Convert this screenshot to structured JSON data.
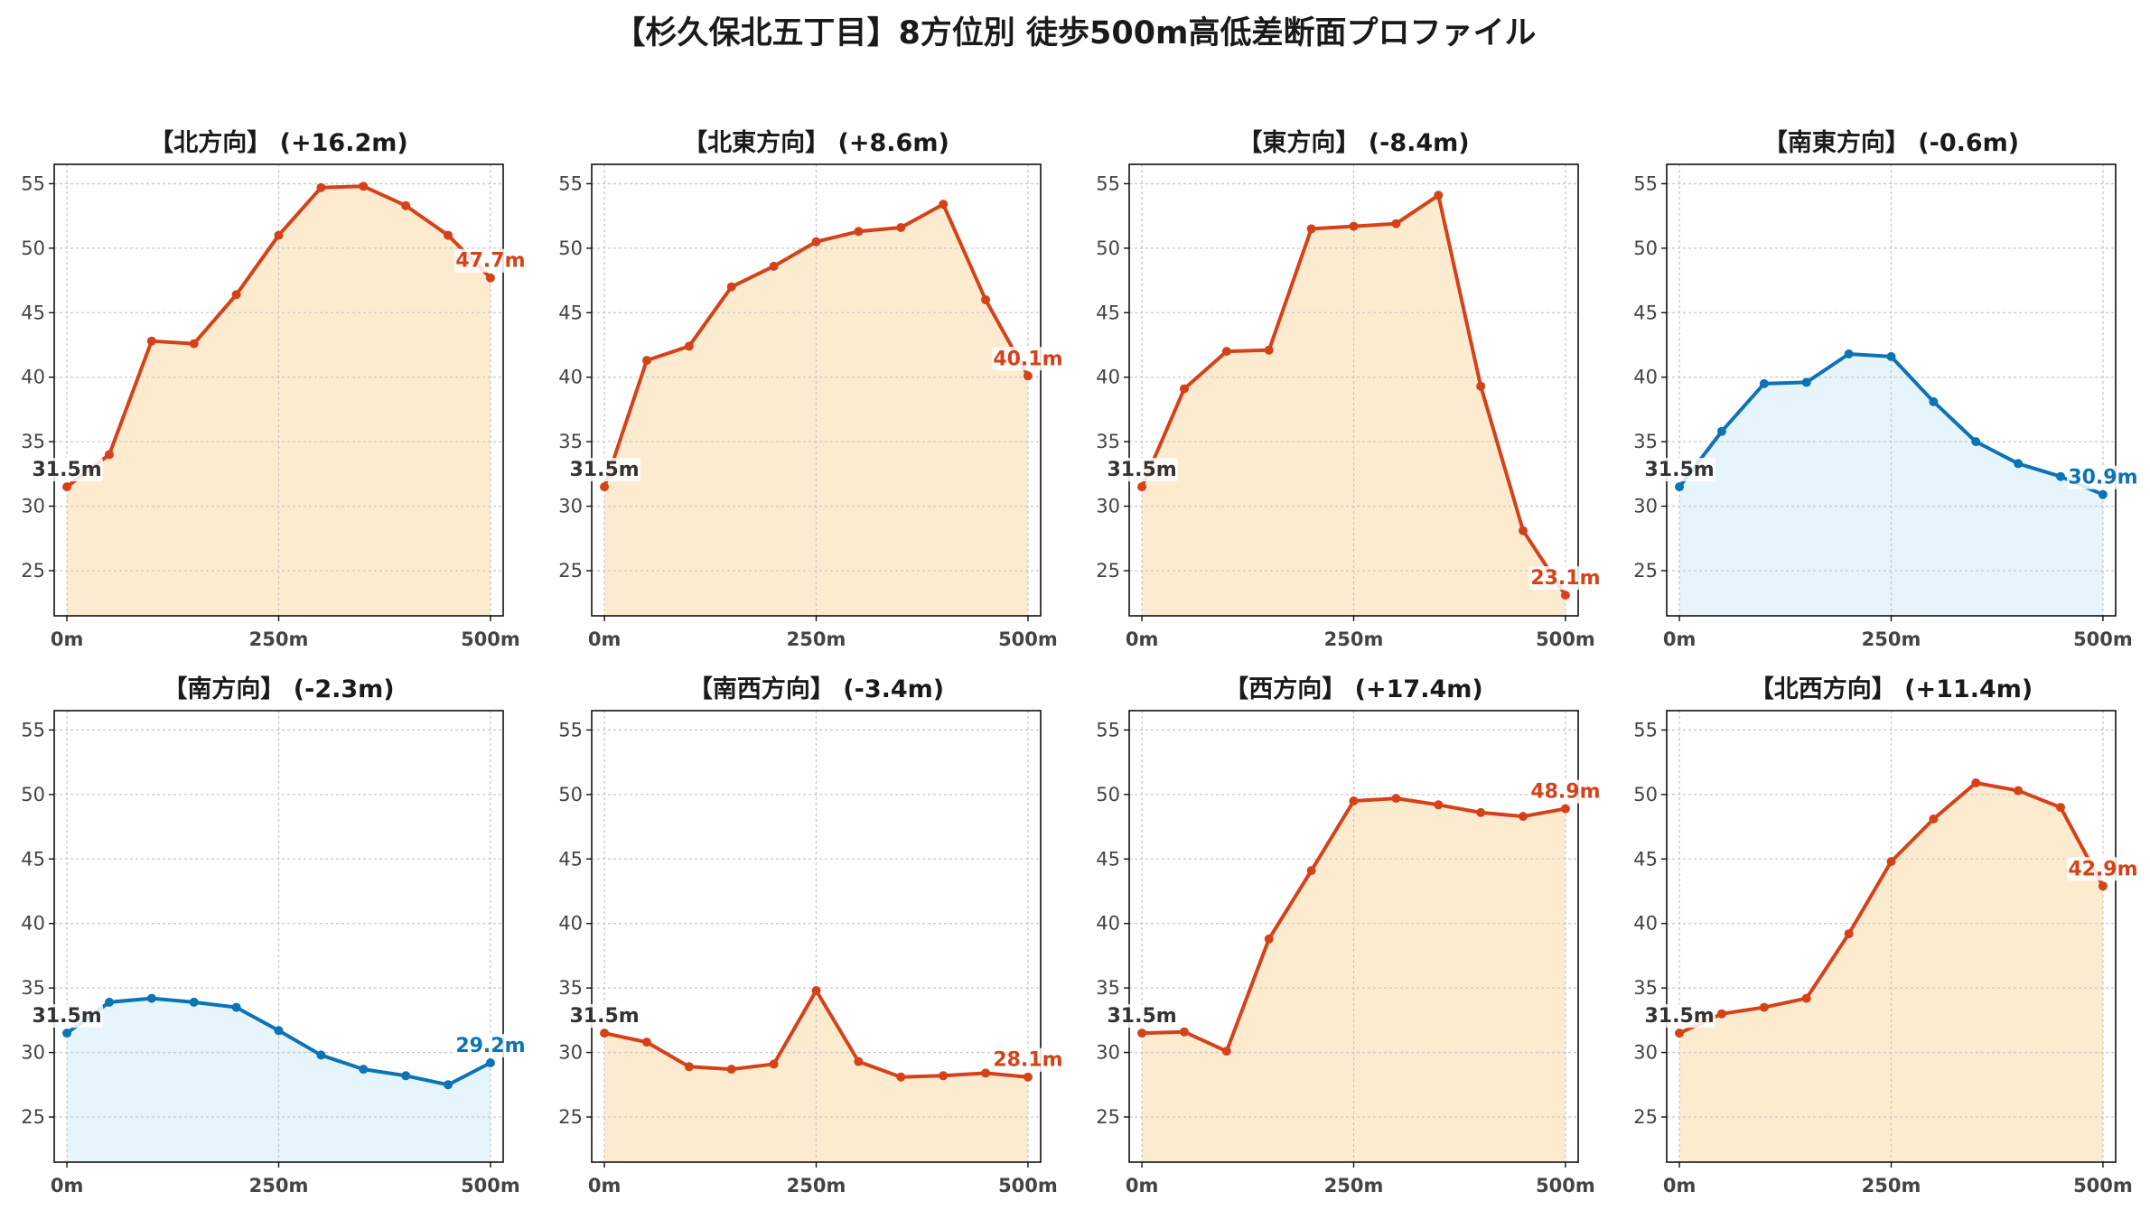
{
  "title": "【杉久保北五丁目】8方位別 徒歩500m高低差断面プロファイル",
  "colors": {
    "up_line": "#d4421a",
    "up_fill": "#fdebd0",
    "down_line": "#0d73b5",
    "down_fill": "#e6f4fb",
    "start_label": "#333333",
    "grid": "#c8c8c8",
    "frame": "#111111"
  },
  "chart_data": [
    {
      "type": "area",
      "title": "【北方向】 (+16.2m)",
      "trend": "up",
      "x": [
        0,
        50,
        100,
        150,
        200,
        250,
        300,
        350,
        400,
        450,
        500
      ],
      "values": [
        31.5,
        34.0,
        42.8,
        42.6,
        46.4,
        51.0,
        54.7,
        54.8,
        53.3,
        51.0,
        47.7
      ],
      "xticks": [
        0,
        250,
        500
      ],
      "xtick_labels": [
        "0m",
        "250m",
        "500m"
      ],
      "yticks": [
        25,
        30,
        35,
        40,
        45,
        50,
        55
      ],
      "xlim": [
        -15,
        515
      ],
      "ylim": [
        21.5,
        56.5
      ],
      "start_label": "31.5m",
      "end_label": "47.7m",
      "grid": true
    },
    {
      "type": "area",
      "title": "【北東方向】 (+8.6m)",
      "trend": "up",
      "x": [
        0,
        50,
        100,
        150,
        200,
        250,
        300,
        350,
        400,
        450,
        500
      ],
      "values": [
        31.5,
        41.3,
        42.4,
        47.0,
        48.6,
        50.5,
        51.3,
        51.6,
        53.4,
        46.0,
        40.1
      ],
      "xticks": [
        0,
        250,
        500
      ],
      "xtick_labels": [
        "0m",
        "250m",
        "500m"
      ],
      "yticks": [
        25,
        30,
        35,
        40,
        45,
        50,
        55
      ],
      "xlim": [
        -15,
        515
      ],
      "ylim": [
        21.5,
        56.5
      ],
      "start_label": "31.5m",
      "end_label": "40.1m",
      "grid": true
    },
    {
      "type": "area",
      "title": "【東方向】 (-8.4m)",
      "trend": "up",
      "x": [
        0,
        50,
        100,
        150,
        200,
        250,
        300,
        350,
        400,
        450,
        500
      ],
      "values": [
        31.5,
        39.1,
        42.0,
        42.1,
        51.5,
        51.7,
        51.9,
        54.1,
        39.3,
        28.1,
        23.1
      ],
      "xticks": [
        0,
        250,
        500
      ],
      "xtick_labels": [
        "0m",
        "250m",
        "500m"
      ],
      "yticks": [
        25,
        30,
        35,
        40,
        45,
        50,
        55
      ],
      "xlim": [
        -15,
        515
      ],
      "ylim": [
        21.5,
        56.5
      ],
      "start_label": "31.5m",
      "end_label": "23.1m",
      "grid": true
    },
    {
      "type": "area",
      "title": "【南東方向】 (-0.6m)",
      "trend": "down",
      "x": [
        0,
        50,
        100,
        150,
        200,
        250,
        300,
        350,
        400,
        450,
        500
      ],
      "values": [
        31.5,
        35.8,
        39.5,
        39.6,
        41.8,
        41.6,
        38.1,
        35.0,
        33.3,
        32.3,
        30.9
      ],
      "xticks": [
        0,
        250,
        500
      ],
      "xtick_labels": [
        "0m",
        "250m",
        "500m"
      ],
      "yticks": [
        25,
        30,
        35,
        40,
        45,
        50,
        55
      ],
      "xlim": [
        -15,
        515
      ],
      "ylim": [
        21.5,
        56.5
      ],
      "start_label": "31.5m",
      "end_label": "30.9m",
      "grid": true
    },
    {
      "type": "area",
      "title": "【南方向】 (-2.3m)",
      "trend": "down",
      "x": [
        0,
        50,
        100,
        150,
        200,
        250,
        300,
        350,
        400,
        450,
        500
      ],
      "values": [
        31.5,
        33.9,
        34.2,
        33.9,
        33.5,
        31.7,
        29.8,
        28.7,
        28.2,
        27.5,
        29.2
      ],
      "xticks": [
        0,
        250,
        500
      ],
      "xtick_labels": [
        "0m",
        "250m",
        "500m"
      ],
      "yticks": [
        25,
        30,
        35,
        40,
        45,
        50,
        55
      ],
      "xlim": [
        -15,
        515
      ],
      "ylim": [
        21.5,
        56.5
      ],
      "start_label": "31.5m",
      "end_label": "29.2m",
      "grid": true
    },
    {
      "type": "area",
      "title": "【南西方向】 (-3.4m)",
      "trend": "up",
      "x": [
        0,
        50,
        100,
        150,
        200,
        250,
        300,
        350,
        400,
        450,
        500
      ],
      "values": [
        31.5,
        30.8,
        28.9,
        28.7,
        29.1,
        34.8,
        29.3,
        28.1,
        28.2,
        28.4,
        28.1
      ],
      "xticks": [
        0,
        250,
        500
      ],
      "xtick_labels": [
        "0m",
        "250m",
        "500m"
      ],
      "yticks": [
        25,
        30,
        35,
        40,
        45,
        50,
        55
      ],
      "xlim": [
        -15,
        515
      ],
      "ylim": [
        21.5,
        56.5
      ],
      "start_label": "31.5m",
      "end_label": "28.1m",
      "grid": true
    },
    {
      "type": "area",
      "title": "【西方向】 (+17.4m)",
      "trend": "up",
      "x": [
        0,
        50,
        100,
        150,
        200,
        250,
        300,
        350,
        400,
        450,
        500
      ],
      "values": [
        31.5,
        31.6,
        30.1,
        38.8,
        44.1,
        49.5,
        49.7,
        49.2,
        48.6,
        48.3,
        48.9
      ],
      "xticks": [
        0,
        250,
        500
      ],
      "xtick_labels": [
        "0m",
        "250m",
        "500m"
      ],
      "yticks": [
        25,
        30,
        35,
        40,
        45,
        50,
        55
      ],
      "xlim": [
        -15,
        515
      ],
      "ylim": [
        21.5,
        56.5
      ],
      "start_label": "31.5m",
      "end_label": "48.9m",
      "grid": true
    },
    {
      "type": "area",
      "title": "【北西方向】 (+11.4m)",
      "trend": "up",
      "x": [
        0,
        50,
        100,
        150,
        200,
        250,
        300,
        350,
        400,
        450,
        500
      ],
      "values": [
        31.5,
        33.0,
        33.5,
        34.2,
        39.2,
        44.8,
        48.1,
        50.9,
        50.3,
        49.0,
        42.9
      ],
      "xticks": [
        0,
        250,
        500
      ],
      "xtick_labels": [
        "0m",
        "250m",
        "500m"
      ],
      "yticks": [
        25,
        30,
        35,
        40,
        45,
        50,
        55
      ],
      "xlim": [
        -15,
        515
      ],
      "ylim": [
        21.5,
        56.5
      ],
      "start_label": "31.5m",
      "end_label": "42.9m",
      "grid": true
    }
  ]
}
